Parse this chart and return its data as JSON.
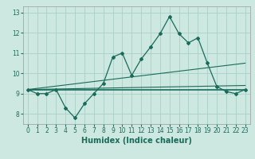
{
  "xlabel": "Humidex (Indice chaleur)",
  "background_color": "#cce8e0",
  "grid_color": "#aacfc8",
  "line_color": "#1a6b5a",
  "xlim": [
    -0.5,
    23.5
  ],
  "ylim": [
    7.5,
    13.3
  ],
  "xticks": [
    0,
    1,
    2,
    3,
    4,
    5,
    6,
    7,
    8,
    9,
    10,
    11,
    12,
    13,
    14,
    15,
    16,
    17,
    18,
    19,
    20,
    21,
    22,
    23
  ],
  "yticks": [
    8,
    9,
    10,
    11,
    12,
    13
  ],
  "line1_x": [
    0,
    1,
    2,
    3,
    4,
    5,
    6,
    7,
    8,
    9,
    10,
    11,
    12,
    13,
    14,
    15,
    16,
    17,
    18,
    19,
    20,
    21,
    22,
    23
  ],
  "line1_y": [
    9.2,
    9.0,
    9.0,
    9.2,
    8.3,
    7.8,
    8.5,
    9.0,
    9.5,
    10.8,
    11.0,
    9.9,
    10.7,
    11.3,
    11.95,
    12.8,
    11.95,
    11.5,
    11.75,
    10.5,
    9.35,
    9.1,
    9.0,
    9.2
  ],
  "line2_x": [
    0,
    23
  ],
  "line2_y": [
    9.2,
    9.2
  ],
  "line3_x": [
    0,
    23
  ],
  "line3_y": [
    9.2,
    9.4
  ],
  "line4_x": [
    0,
    23
  ],
  "line4_y": [
    9.2,
    10.5
  ],
  "tick_fontsize": 5.5,
  "xlabel_fontsize": 7
}
